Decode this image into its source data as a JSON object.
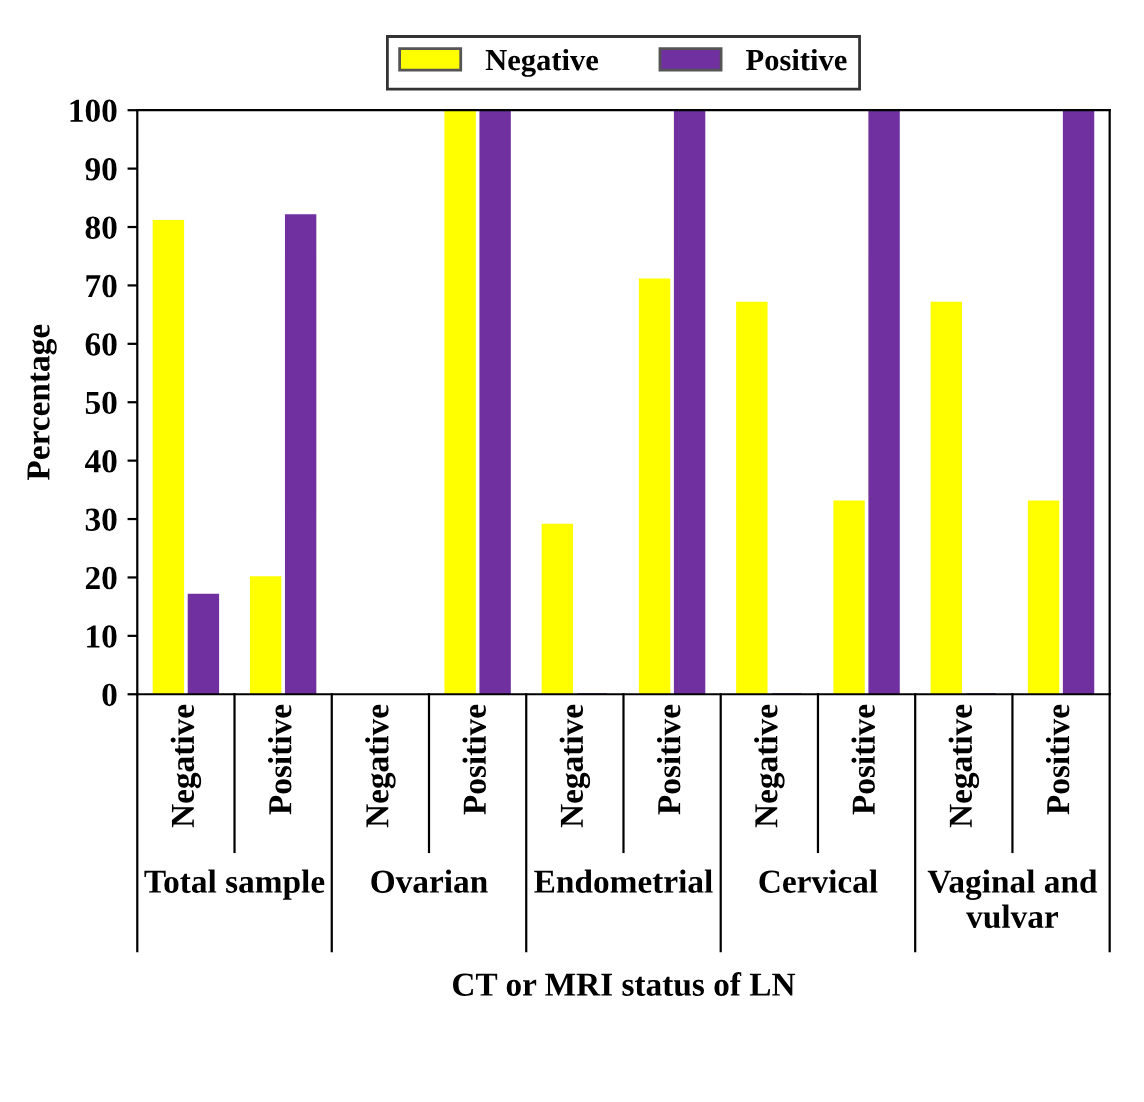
{
  "chart_data": {
    "type": "bar",
    "ylabel": "Percentage",
    "xlabel": "CT or MRI status of LN",
    "categories": [
      "Negative",
      "Positive",
      "Negative",
      "Positive",
      "Negative",
      "Positive",
      "Negative",
      "Positive",
      "Negative",
      "Positive"
    ],
    "series": [
      {
        "name": "Negative",
        "color": "#ffff00",
        "values": [
          81,
          20,
          null,
          100,
          29,
          71,
          67,
          33,
          67,
          33
        ]
      },
      {
        "name": "Positive",
        "color": "#7030a0",
        "values": [
          17,
          82,
          null,
          100,
          0,
          100,
          0,
          100,
          0,
          100
        ]
      }
    ],
    "annotations": [
      "Total sample",
      "Ovarian",
      "Endometrial",
      "Cervical",
      "Vaginal and vulvar"
    ],
    "ylim": [
      0,
      100
    ],
    "yticks": [
      0,
      10,
      20,
      30,
      40,
      50,
      60,
      70,
      80,
      90,
      100
    ],
    "grid": false,
    "legend": "top"
  }
}
